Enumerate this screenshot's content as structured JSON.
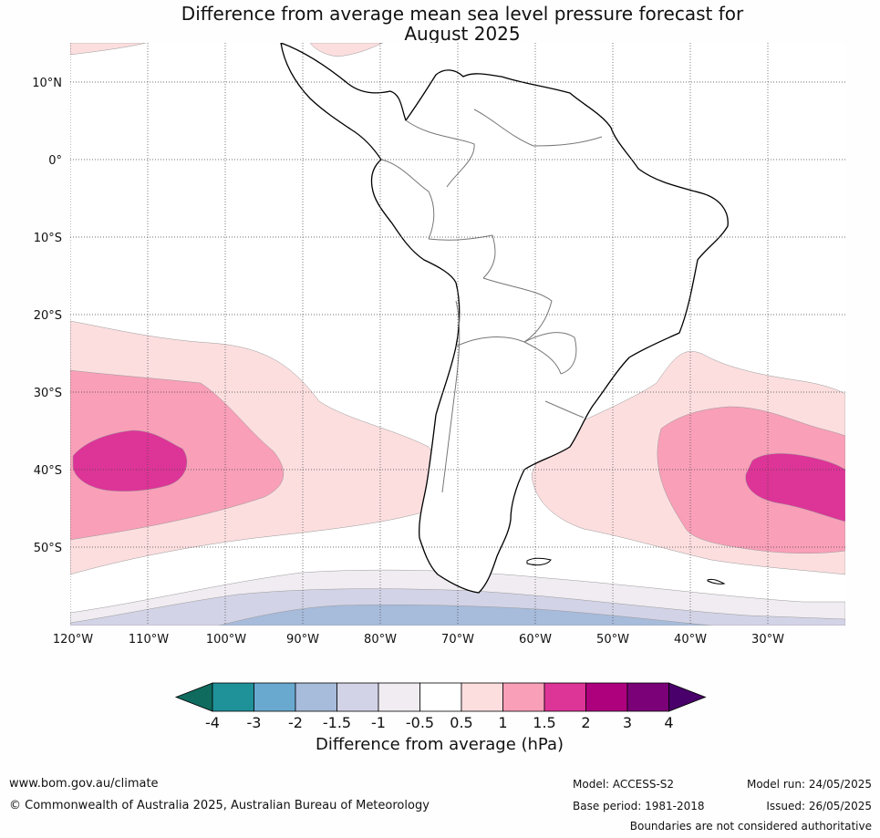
{
  "title": {
    "line1": "Difference from average mean sea level pressure forecast for",
    "line2": "August 2025"
  },
  "map": {
    "lat_labels": [
      "10°N",
      "0°",
      "10°S",
      "20°S",
      "30°S",
      "40°S",
      "50°S"
    ],
    "lon_labels": [
      "120°W",
      "110°W",
      "100°W",
      "90°W",
      "80°W",
      "70°W",
      "60°W",
      "50°W",
      "40°W",
      "30°W"
    ],
    "colors": {
      "land": "#ffffff",
      "coastline": "#000000",
      "borders": "#777777",
      "gridline": "#444444"
    }
  },
  "colorbar": {
    "tick_labels": [
      "-4",
      "-3",
      "-2",
      "-1.5",
      "-1",
      "-0.5",
      "0.5",
      "1",
      "1.5",
      "2",
      "3",
      "4"
    ],
    "colors": [
      "#0f6b5e",
      "#1f9199",
      "#69a9d0",
      "#a7bbdb",
      "#d2d3e6",
      "#f0ecf2",
      "#ffffff",
      "#fcdedf",
      "#f99fb8",
      "#dd3497",
      "#ae017e",
      "#7a0177",
      "#49006a"
    ],
    "label": "Difference from average (hPa)"
  },
  "footer": {
    "website": "www.bom.gov.au/climate",
    "copyright": "© Commonwealth of Australia 2025, Australian Bureau of Meteorology",
    "model": "Model: ACCESS-S2",
    "base_period": "Base period: 1981-2018",
    "model_run": "Model run: 24/05/2025",
    "issued": "Issued: 26/05/2025",
    "disclaimer": "Boundaries are not considered authoritative"
  }
}
